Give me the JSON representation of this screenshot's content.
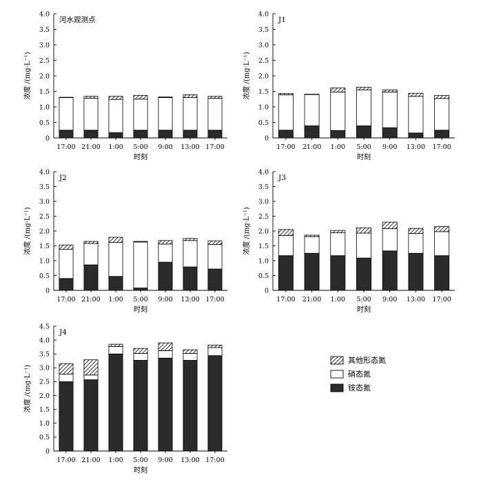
{
  "figure_legend": {
    "items": [
      "其他形态氮",
      "硝态氮",
      "铵态氮"
    ]
  },
  "colors": {
    "ammonium": "#2b2b2b",
    "nitrate": "#ffffff",
    "other": "hatch",
    "stroke": "#000000"
  },
  "chart_data": [
    {
      "type": "bar",
      "stacked": true,
      "title": "河水观测点",
      "xlabel": "时刻",
      "ylabel": "浓度 /(mg·L⁻¹)",
      "ylim": [
        0,
        4.0
      ],
      "yticks": [
        "0",
        "0.5",
        "1.0",
        "1.5",
        "2.0",
        "2.5",
        "3.0",
        "3.5",
        "4.0"
      ],
      "categories": [
        "17:00",
        "21:00",
        "1:00",
        "5:00",
        "9:00",
        "13:00",
        "17:00"
      ],
      "series": [
        {
          "name": "铵态氮",
          "values": [
            0.25,
            0.25,
            0.17,
            0.25,
            0.25,
            0.25,
            0.25
          ]
        },
        {
          "name": "硝态氮",
          "values": [
            1.05,
            1.03,
            1.07,
            1.0,
            1.05,
            1.05,
            1.03
          ]
        },
        {
          "name": "其他形态氮",
          "values": [
            0.01,
            0.06,
            0.1,
            0.12,
            0.02,
            0.09,
            0.06
          ]
        }
      ]
    },
    {
      "type": "bar",
      "stacked": true,
      "title": "J1",
      "xlabel": "时刻",
      "ylabel": "浓度 /(mg·L⁻¹)",
      "ylim": [
        0,
        4.0
      ],
      "yticks": [
        "0",
        "0.5",
        "1.0",
        "1.5",
        "2.0",
        "2.5",
        "3.0",
        "3.5",
        "4.0"
      ],
      "categories": [
        "17:00",
        "21:00",
        "1:00",
        "5:00",
        "9:00",
        "13:00",
        "17:00"
      ],
      "series": [
        {
          "name": "铵态氮",
          "values": [
            0.25,
            0.39,
            0.24,
            0.39,
            0.33,
            0.16,
            0.25
          ]
        },
        {
          "name": "硝态氮",
          "values": [
            1.14,
            1.01,
            1.24,
            1.16,
            1.15,
            1.18,
            1.02
          ]
        },
        {
          "name": "其他形态氮",
          "values": [
            0.04,
            0.01,
            0.13,
            0.08,
            0.07,
            0.1,
            0.1
          ]
        }
      ]
    },
    {
      "type": "bar",
      "stacked": true,
      "title": "J2",
      "xlabel": "时刻",
      "ylabel": "浓度 /(mg·L⁻¹)",
      "ylim": [
        0,
        4.0
      ],
      "yticks": [
        "0",
        "0.5",
        "1.0",
        "1.5",
        "2.0",
        "2.5",
        "3.0",
        "3.5",
        "4.0"
      ],
      "categories": [
        "17:00",
        "21:00",
        "1:00",
        "5:00",
        "9:00",
        "13:00",
        "17:00"
      ],
      "series": [
        {
          "name": "铵态氮",
          "values": [
            0.4,
            0.86,
            0.47,
            0.08,
            0.95,
            0.79,
            0.72
          ]
        },
        {
          "name": "硝态氮",
          "values": [
            0.98,
            0.72,
            1.15,
            1.55,
            0.61,
            0.89,
            0.83
          ]
        },
        {
          "name": "其他形态氮",
          "values": [
            0.15,
            0.07,
            0.17,
            0.02,
            0.12,
            0.07,
            0.12
          ]
        }
      ]
    },
    {
      "type": "bar",
      "stacked": true,
      "title": "J3",
      "xlabel": "时刻",
      "ylabel": "浓度 /(mg·L⁻¹)",
      "ylim": [
        0,
        4.0
      ],
      "yticks": [
        "0",
        "0.5",
        "1.0",
        "1.5",
        "2.0",
        "2.5",
        "3.0",
        "3.5",
        "4.0"
      ],
      "categories": [
        "17:00",
        "21:00",
        "1:00",
        "5:00",
        "9:00",
        "13:00",
        "17:00"
      ],
      "series": [
        {
          "name": "铵态氮",
          "values": [
            1.17,
            1.25,
            1.17,
            1.09,
            1.33,
            1.25,
            1.17
          ]
        },
        {
          "name": "硝态氮",
          "values": [
            0.68,
            0.56,
            0.77,
            0.84,
            0.75,
            0.67,
            0.81
          ]
        },
        {
          "name": "其他形态氮",
          "values": [
            0.2,
            0.05,
            0.08,
            0.18,
            0.22,
            0.17,
            0.17
          ]
        }
      ]
    },
    {
      "type": "bar",
      "stacked": true,
      "title": "J4",
      "xlabel": "时刻",
      "ylabel": "浓度 /(mg·L⁻¹)",
      "ylim": [
        0,
        4.5
      ],
      "yticks": [
        "0",
        "0.5",
        "1.0",
        "1.5",
        "2.0",
        "2.5",
        "3.0",
        "3.5",
        "4.0",
        "4.5"
      ],
      "categories": [
        "17:00",
        "21:00",
        "1:00",
        "5:00",
        "9:00",
        "13:00",
        "17:00"
      ],
      "series": [
        {
          "name": "铵态氮",
          "values": [
            2.5,
            2.57,
            3.5,
            3.27,
            3.35,
            3.27,
            3.44
          ]
        },
        {
          "name": "硝态氮",
          "values": [
            0.27,
            0.17,
            0.27,
            0.25,
            0.27,
            0.25,
            0.29
          ]
        },
        {
          "name": "其他形态氮",
          "values": [
            0.38,
            0.55,
            0.08,
            0.18,
            0.28,
            0.13,
            0.09
          ]
        }
      ]
    }
  ]
}
